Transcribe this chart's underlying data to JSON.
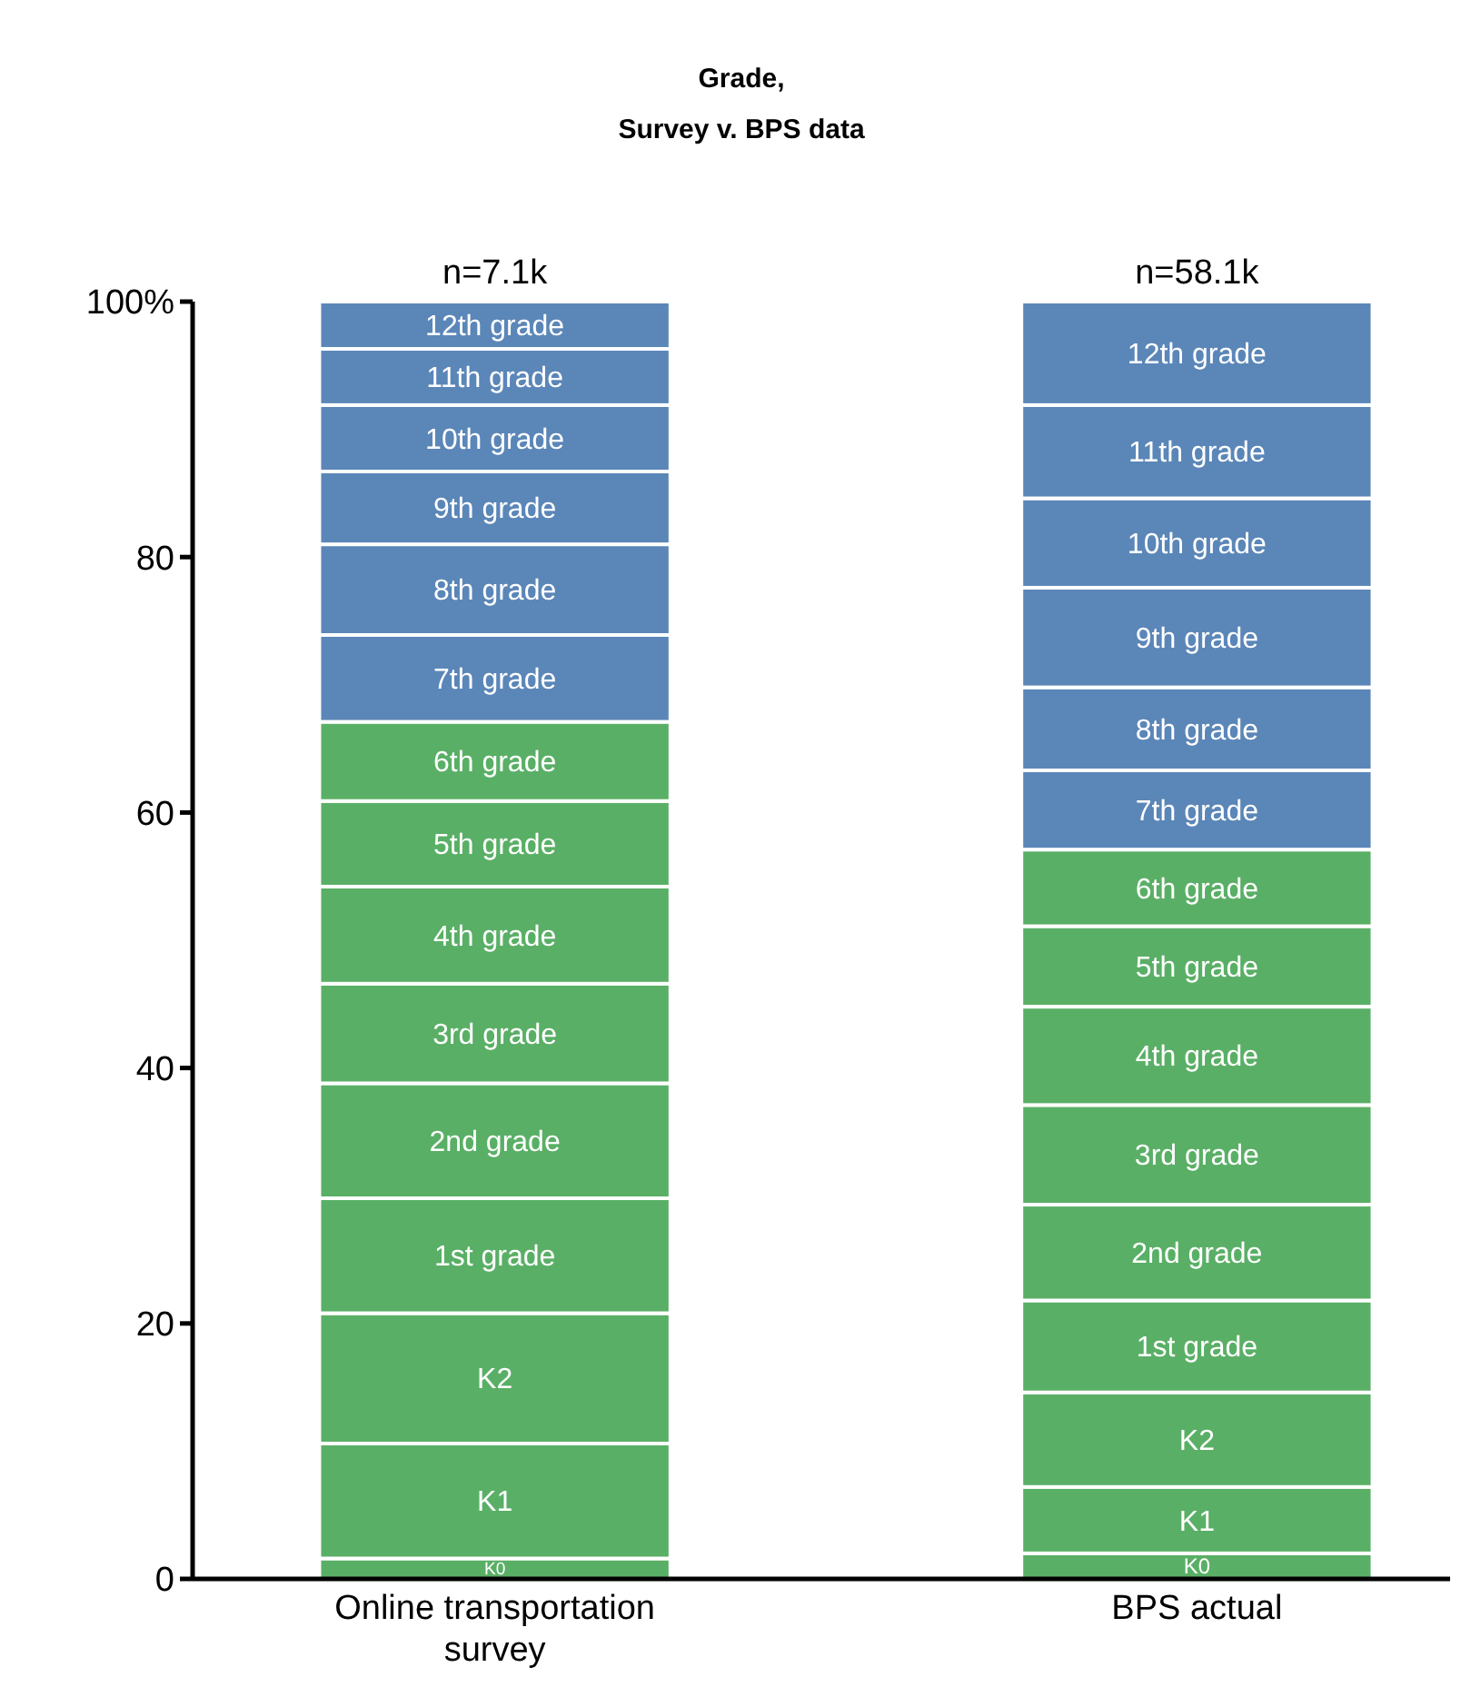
{
  "chart_data": {
    "type": "bar",
    "stacked": true,
    "title": "Grade,",
    "subtitle": "Survey v. BPS data",
    "categories": [
      "Online transportation survey",
      "BPS actual"
    ],
    "ylim": [
      0,
      100
    ],
    "yticks": [
      0,
      20,
      40,
      60,
      80,
      {
        "value": 100,
        "label": "100%"
      }
    ],
    "annotations": [
      {
        "text": "n=7.1k",
        "x": "Online transportation survey",
        "y": 100
      },
      {
        "text": "n=58.1k",
        "x": "BPS actual",
        "y": 100
      }
    ],
    "series": [
      {
        "name": "K0",
        "color": "#5aaf66",
        "values": [
          1.6,
          2.0
        ]
      },
      {
        "name": "K1",
        "color": "#5aaf66",
        "values": [
          9.0,
          5.2
        ]
      },
      {
        "name": "K2",
        "color": "#5aaf66",
        "values": [
          10.2,
          7.4
        ]
      },
      {
        "name": "1st grade",
        "color": "#5aaf66",
        "values": [
          9.0,
          7.2
        ]
      },
      {
        "name": "2nd grade",
        "color": "#5aaf66",
        "values": [
          9.0,
          7.5
        ]
      },
      {
        "name": "3rd grade",
        "color": "#5aaf66",
        "values": [
          7.8,
          7.8
        ]
      },
      {
        "name": "4th grade",
        "color": "#5aaf66",
        "values": [
          7.6,
          7.7
        ]
      },
      {
        "name": "5th grade",
        "color": "#5aaf66",
        "values": [
          6.7,
          6.3
        ]
      },
      {
        "name": "6th grade",
        "color": "#5aaf66",
        "values": [
          6.2,
          6.0
        ]
      },
      {
        "name": "7th grade",
        "color": "#5b86b8",
        "values": [
          6.8,
          6.2
        ]
      },
      {
        "name": "8th grade",
        "color": "#5b86b8",
        "values": [
          7.1,
          6.5
        ]
      },
      {
        "name": "9th grade",
        "color": "#5b86b8",
        "values": [
          5.7,
          7.8
        ]
      },
      {
        "name": "10th grade",
        "color": "#5b86b8",
        "values": [
          5.2,
          7.0
        ]
      },
      {
        "name": "11th grade",
        "color": "#5b86b8",
        "values": [
          4.4,
          7.3
        ]
      },
      {
        "name": "12th grade",
        "color": "#5b86b8",
        "values": [
          3.7,
          8.1
        ]
      }
    ]
  }
}
